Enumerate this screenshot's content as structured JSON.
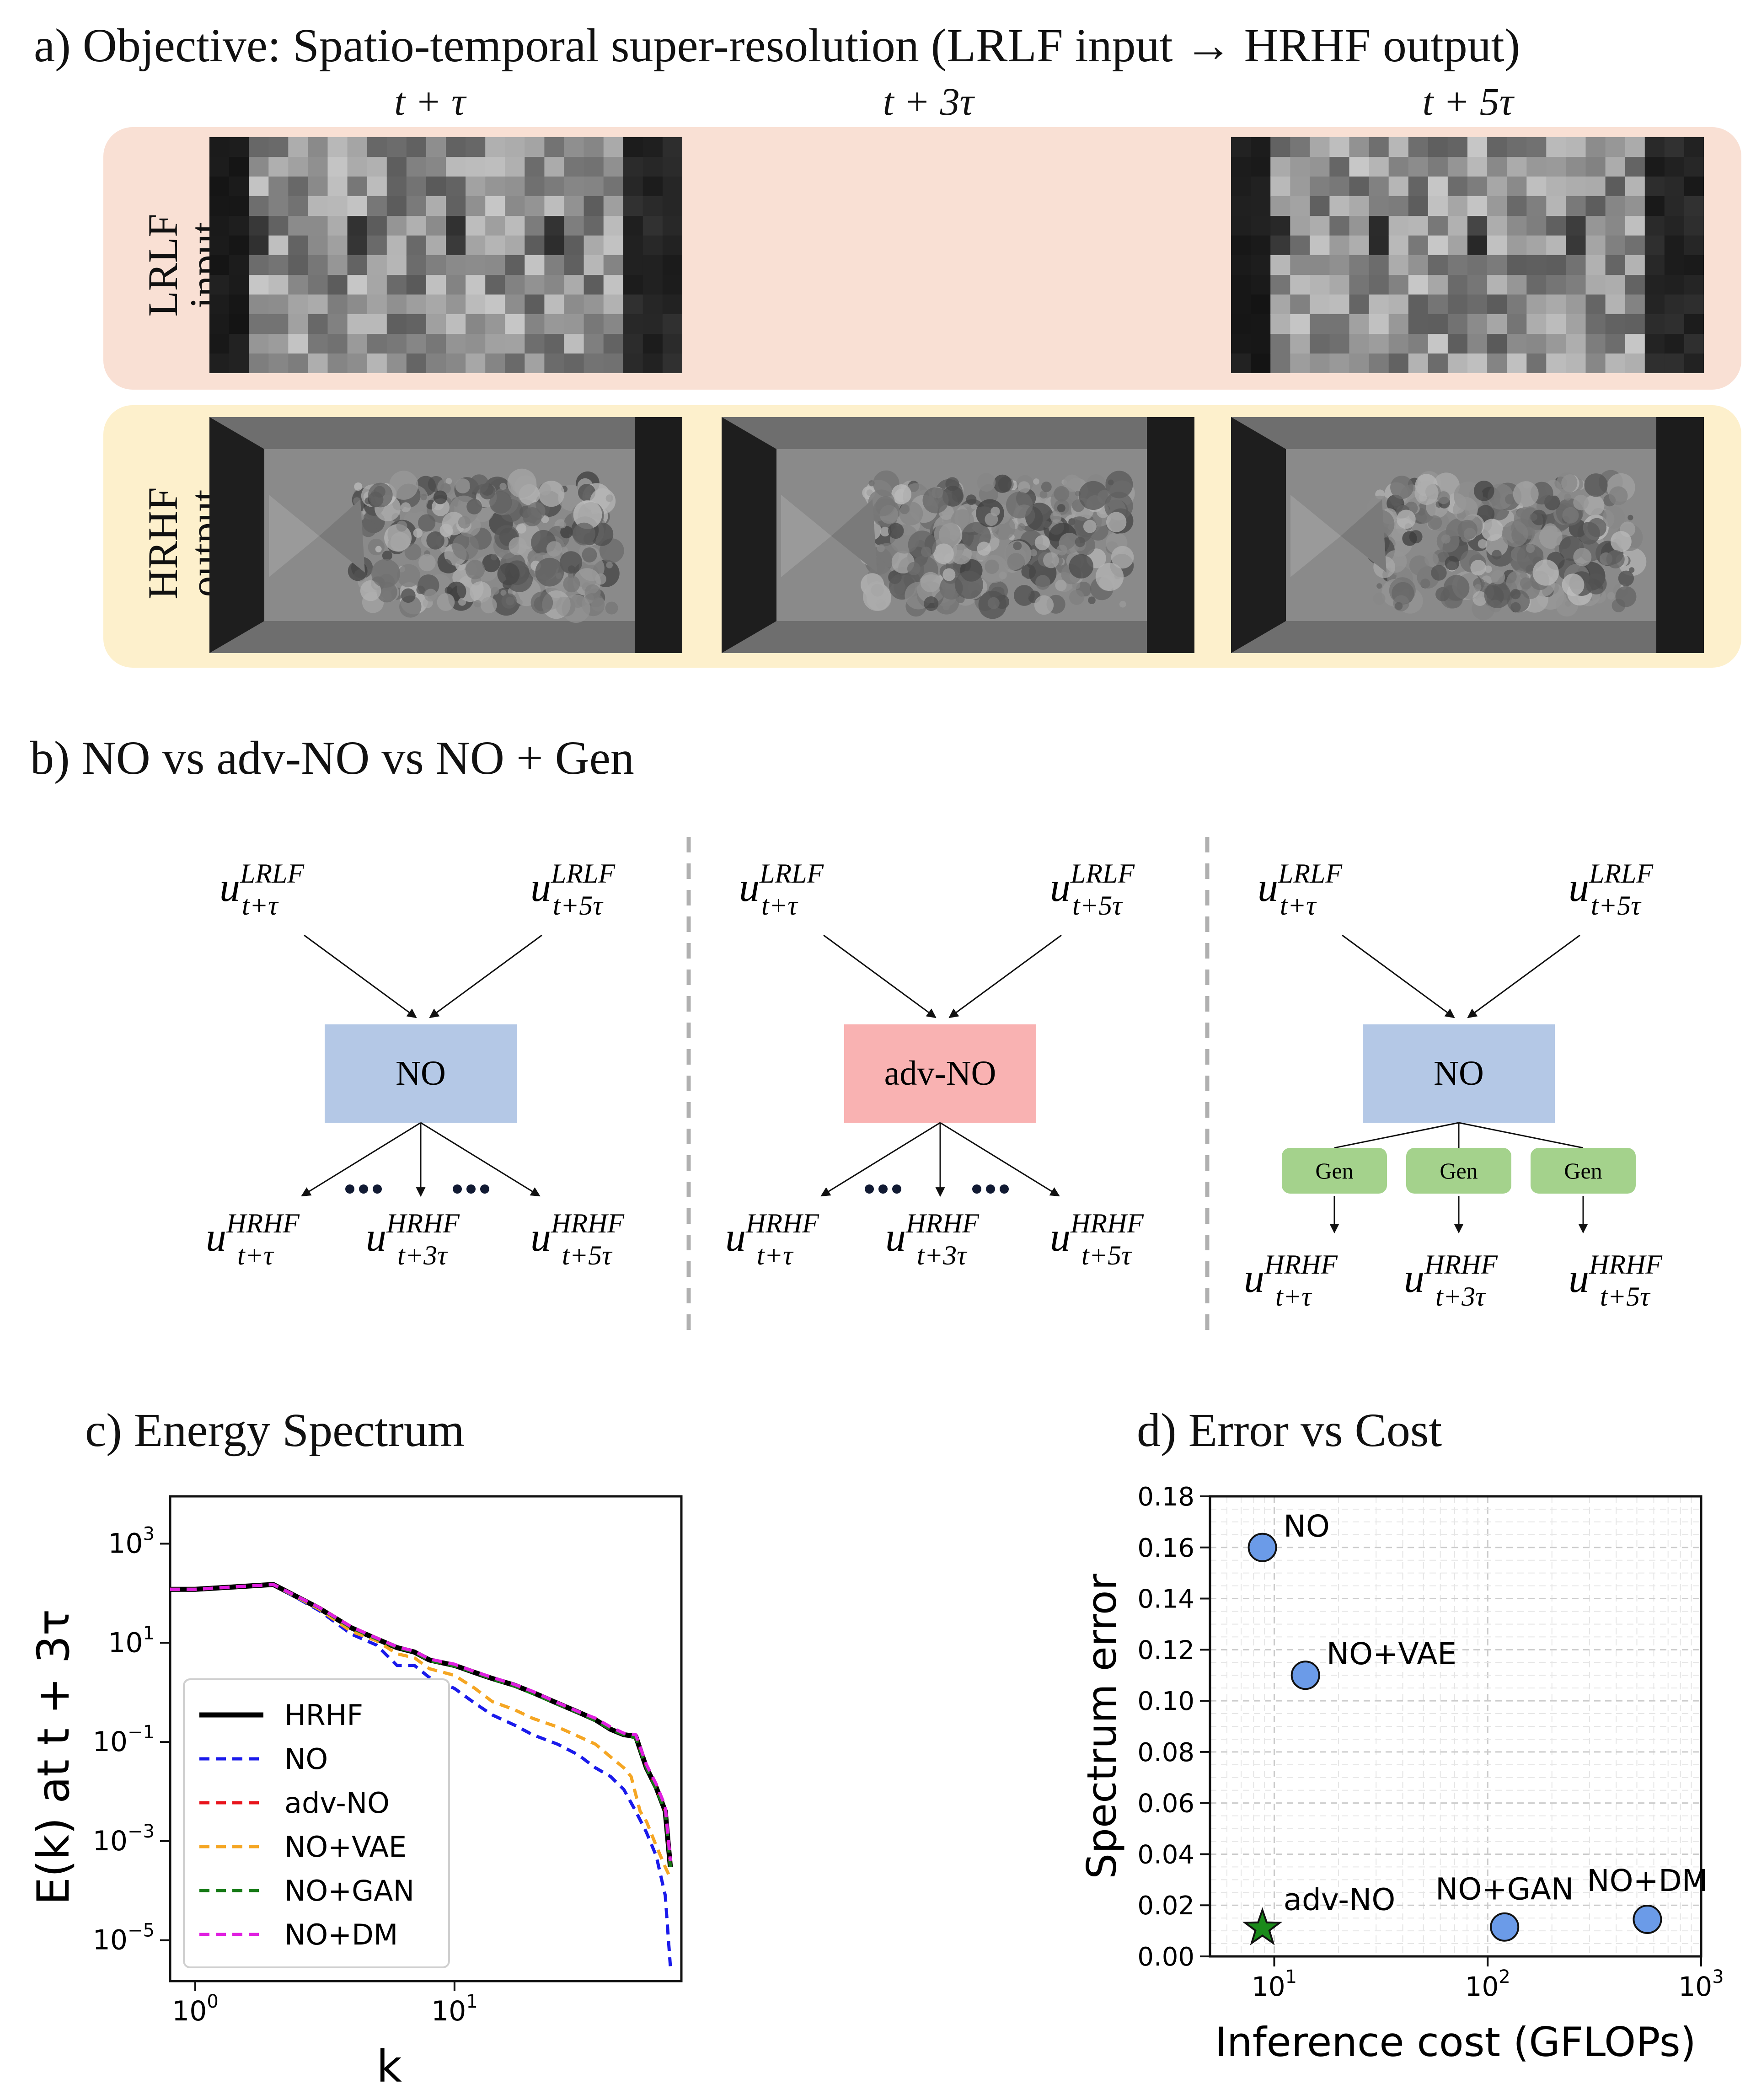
{
  "panel_a": {
    "title": "a) Objective: Spatio-temporal super-resolution (LRLF input → HRHF output)",
    "columns": [
      "t + τ",
      "t + 3τ",
      "t + 5τ"
    ],
    "rows": [
      {
        "line1": "LRLF",
        "line2": "input",
        "color": "#f9e0d4"
      },
      {
        "line1": "HRHF",
        "line2": "output",
        "color": "#fdf0cc"
      }
    ]
  },
  "panel_b": {
    "title": "b) NO vs adv-NO vs NO + Gen",
    "diagrams": [
      {
        "model": "NO",
        "color": "#b4c8e6"
      },
      {
        "model": "adv-NO",
        "color": "#f9b2b2"
      },
      {
        "model": "NO",
        "color": "#b4c8e6",
        "gen_label": "Gen",
        "gen_color": "#a4d28c"
      }
    ],
    "input_left": {
      "base": "u",
      "sup": "LRLF",
      "sub": "t+τ"
    },
    "input_right": {
      "base": "u",
      "sup": "LRLF",
      "sub": "t+5τ"
    },
    "outputs": [
      {
        "base": "u",
        "sup": "HRHF",
        "sub": "t+τ"
      },
      {
        "base": "u",
        "sup": "HRHF",
        "sub": "t+3τ"
      },
      {
        "base": "u",
        "sup": "HRHF",
        "sub": "t+5τ"
      }
    ]
  },
  "panel_c": {
    "title": "c) Energy Spectrum",
    "chart_data": {
      "type": "line",
      "xscale": "log",
      "yscale": "log",
      "xlabel": "k",
      "ylabel": "E(k) at t + 3τ",
      "xlim": [
        0.8,
        75
      ],
      "ylim": [
        1.5e-06,
        9000
      ],
      "xticks": [
        {
          "v": 1,
          "label": "10",
          "exp": "0"
        },
        {
          "v": 10,
          "label": "10",
          "exp": "1"
        }
      ],
      "yticks": [
        {
          "v": 1e-05,
          "label": "10",
          "exp": "−5"
        },
        {
          "v": 0.001,
          "label": "10",
          "exp": "−3"
        },
        {
          "v": 0.1,
          "label": "10",
          "exp": "−1"
        },
        {
          "v": 10,
          "label": "10",
          "exp": "1"
        },
        {
          "v": 1000,
          "label": "10",
          "exp": "3"
        }
      ],
      "legend_position": "lower-left",
      "series": [
        {
          "name": "HRHF",
          "color": "#000000",
          "dash": "",
          "width": 11,
          "x": [
            0.8,
            1,
            2,
            3,
            4,
            5,
            6,
            7,
            8,
            10,
            12,
            14,
            17,
            20,
            25,
            30,
            35,
            40,
            45,
            50,
            55,
            60,
            65,
            68
          ],
          "y": [
            120,
            120,
            150,
            50,
            20,
            12,
            8,
            6.5,
            4.5,
            3.5,
            2.5,
            1.9,
            1.4,
            1.0,
            0.6,
            0.4,
            0.28,
            0.18,
            0.14,
            0.13,
            0.03,
            0.012,
            0.004,
            0.0003
          ]
        },
        {
          "name": "NO",
          "color": "#1a1aeb",
          "dash": "22,14",
          "width": 7,
          "x": [
            0.8,
            1,
            2,
            3,
            4,
            5,
            6,
            7,
            8,
            10,
            12,
            14,
            17,
            20,
            25,
            30,
            35,
            40,
            45,
            50,
            55,
            60,
            65,
            68
          ],
          "y": [
            120,
            120,
            150,
            45,
            15,
            9,
            3.5,
            3.5,
            2.0,
            1.2,
            0.6,
            0.35,
            0.22,
            0.14,
            0.09,
            0.055,
            0.03,
            0.02,
            0.011,
            0.004,
            0.0015,
            0.0005,
            8e-05,
            3e-06
          ]
        },
        {
          "name": "adv-NO",
          "color": "#e8141c",
          "dash": "22,14",
          "width": 7,
          "x": [
            0.8,
            1,
            2,
            3,
            4,
            5,
            6,
            7,
            8,
            10,
            12,
            14,
            17,
            20,
            25,
            30,
            35,
            40,
            45,
            50,
            55,
            60,
            65,
            68
          ],
          "y": [
            120,
            120,
            150,
            52,
            21,
            12.5,
            8.2,
            6.6,
            4.6,
            3.6,
            2.6,
            1.9,
            1.4,
            1.0,
            0.6,
            0.4,
            0.29,
            0.19,
            0.145,
            0.13,
            0.031,
            0.012,
            0.004,
            0.0003
          ]
        },
        {
          "name": "NO+VAE",
          "color": "#f5a623",
          "dash": "22,14",
          "width": 7,
          "x": [
            0.8,
            1,
            2,
            3,
            4,
            5,
            6,
            7,
            8,
            10,
            12,
            14,
            17,
            20,
            25,
            30,
            35,
            40,
            45,
            48,
            52,
            55,
            60,
            65,
            68
          ],
          "y": [
            120,
            120,
            150,
            48,
            17,
            11,
            6,
            5,
            3.0,
            2.2,
            1.2,
            0.65,
            0.45,
            0.3,
            0.2,
            0.13,
            0.09,
            0.05,
            0.03,
            0.02,
            0.004,
            0.0025,
            0.0008,
            0.0003,
            0.00018
          ]
        },
        {
          "name": "NO+GAN",
          "color": "#167a16",
          "dash": "22,14",
          "width": 7,
          "x": [
            0.8,
            1,
            2,
            3,
            4,
            5,
            6,
            7,
            8,
            10,
            12,
            14,
            17,
            20,
            25,
            30,
            35,
            40,
            45,
            50,
            55,
            60,
            65,
            68
          ],
          "y": [
            120,
            120,
            150,
            51,
            20,
            12,
            8,
            6.5,
            4.4,
            3.4,
            2.5,
            1.85,
            1.35,
            0.95,
            0.58,
            0.39,
            0.27,
            0.18,
            0.14,
            0.12,
            0.03,
            0.011,
            0.004,
            0.0003
          ]
        },
        {
          "name": "NO+DM",
          "color": "#e020e0",
          "dash": "22,14",
          "width": 7,
          "x": [
            0.8,
            1,
            2,
            3,
            4,
            5,
            6,
            7,
            8,
            10,
            12,
            14,
            17,
            20,
            25,
            30,
            35,
            40,
            45,
            50,
            55,
            60,
            65,
            68
          ],
          "y": [
            120,
            120,
            150,
            52,
            21,
            12.5,
            8.3,
            6.8,
            4.7,
            3.7,
            2.6,
            2.0,
            1.45,
            1.05,
            0.62,
            0.41,
            0.3,
            0.2,
            0.15,
            0.14,
            0.035,
            0.014,
            0.005,
            0.0004
          ]
        }
      ]
    }
  },
  "panel_d": {
    "title": "d) Error vs Cost",
    "chart_data": {
      "type": "scatter",
      "xscale": "log",
      "xlabel": "Inference cost (GFLOPs)",
      "ylabel": "Spectrum error",
      "xlim": [
        5,
        1000
      ],
      "ylim": [
        0,
        0.18
      ],
      "xticks": [
        {
          "v": 10,
          "label": "10",
          "exp": "1"
        },
        {
          "v": 100,
          "label": "10",
          "exp": "2"
        },
        {
          "v": 1000,
          "label": "10",
          "exp": "3"
        }
      ],
      "yticks": [
        "0.00",
        "0.02",
        "0.04",
        "0.06",
        "0.08",
        "0.10",
        "0.12",
        "0.14",
        "0.16",
        "0.18"
      ],
      "grid": true,
      "points": [
        {
          "label": "NO",
          "x": 8.8,
          "y": 0.16,
          "marker": "circle",
          "color": "#6b9be8"
        },
        {
          "label": "NO+VAE",
          "x": 14,
          "y": 0.11,
          "marker": "circle",
          "color": "#6b9be8"
        },
        {
          "label": "adv-NO",
          "x": 8.8,
          "y": 0.011,
          "marker": "star",
          "color": "#1a8a1a"
        },
        {
          "label": "NO+GAN",
          "x": 120,
          "y": 0.0115,
          "marker": "circle",
          "color": "#6b9be8"
        },
        {
          "label": "NO+DM",
          "x": 560,
          "y": 0.0145,
          "marker": "circle",
          "color": "#6b9be8"
        }
      ]
    }
  }
}
